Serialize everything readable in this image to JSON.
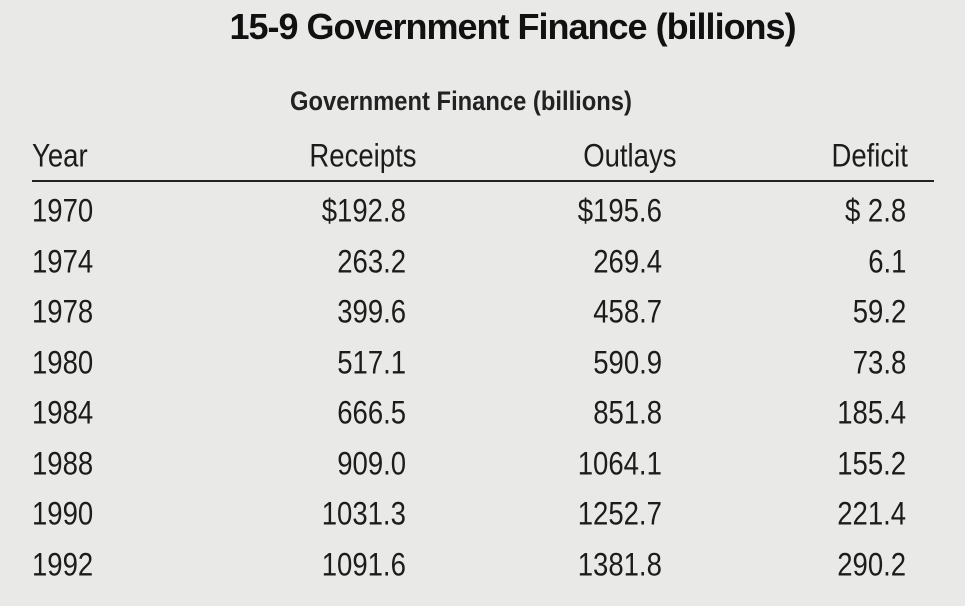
{
  "page_title": "15-9  Government Finance (billions)",
  "table": {
    "caption": "Government Finance (billions)",
    "columns": [
      "Year",
      "Receipts",
      "Outlays",
      "Deficit"
    ],
    "rows": [
      {
        "year": "1970",
        "receipts": "$192.8",
        "outlays": "$195.6",
        "deficit": "$ 2.8"
      },
      {
        "year": "1974",
        "receipts": "263.2",
        "outlays": "269.4",
        "deficit": "6.1"
      },
      {
        "year": "1978",
        "receipts": "399.6",
        "outlays": "458.7",
        "deficit": "59.2"
      },
      {
        "year": "1980",
        "receipts": "517.1",
        "outlays": "590.9",
        "deficit": "73.8"
      },
      {
        "year": "1984",
        "receipts": "666.5",
        "outlays": "851.8",
        "deficit": "185.4"
      },
      {
        "year": "1988",
        "receipts": "909.0",
        "outlays": "1064.1",
        "deficit": "155.2"
      },
      {
        "year": "1990",
        "receipts": "1031.3",
        "outlays": "1252.7",
        "deficit": "221.4"
      },
      {
        "year": "1992",
        "receipts": "1091.6",
        "outlays": "1381.8",
        "deficit": "290.2"
      }
    ]
  }
}
